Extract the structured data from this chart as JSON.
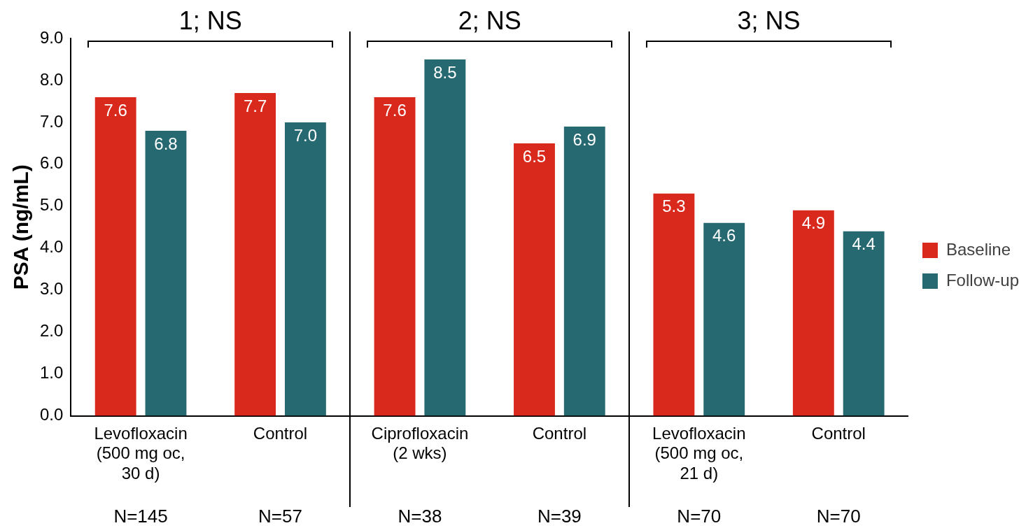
{
  "chart_data": {
    "type": "bar",
    "ylabel": "PSA (ng/mL)",
    "categories": [
      "Levofloxacin\n(500 mg oc,\n30 d)",
      "Control",
      "Ciprofloxacin\n(2 wks)",
      "Control",
      "Levofloxacin\n(500 mg oc,\n21 d)",
      "Control"
    ],
    "series": [
      {
        "name": "Baseline",
        "color": "#d9291c",
        "values": [
          7.6,
          7.7,
          7.6,
          6.5,
          5.3,
          4.9
        ],
        "value_labels": [
          "7.6",
          "7.7",
          "7.6",
          "6.5",
          "5.3",
          "4.9"
        ]
      },
      {
        "name": "Follow-up",
        "color": "#266970",
        "values": [
          6.8,
          7.0,
          8.5,
          6.9,
          4.6,
          4.4
        ],
        "value_labels": [
          "6.8",
          "7.0",
          "8.5",
          "6.9",
          "4.6",
          "4.4"
        ]
      }
    ],
    "ylim": [
      0,
      9
    ],
    "yticks": [
      {
        "value": 0,
        "label": "0.0"
      },
      {
        "value": 1,
        "label": "1.0"
      },
      {
        "value": 2,
        "label": "2.0"
      },
      {
        "value": 3,
        "label": "3.0"
      },
      {
        "value": 4,
        "label": "4.0"
      },
      {
        "value": 5,
        "label": "5.0"
      },
      {
        "value": 6,
        "label": "6.0"
      },
      {
        "value": 7,
        "label": "7.0"
      },
      {
        "value": 8,
        "label": "8.0"
      },
      {
        "value": 9,
        "label": "9.0"
      }
    ],
    "grid": false,
    "legend": "right",
    "annotations": [
      "1; NS",
      "2; NS",
      "3; NS",
      "N=145",
      "N=57",
      "N=38",
      "N=39",
      "N=70",
      "N=70"
    ]
  }
}
